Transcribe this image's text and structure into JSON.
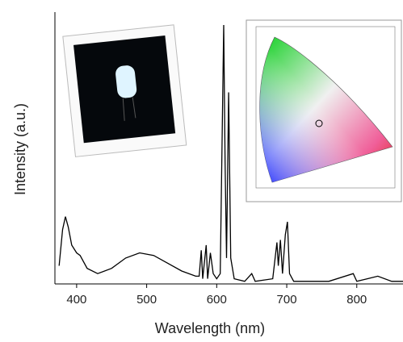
{
  "chart_data": {
    "type": "line",
    "x_label": "Wavelength (nm)",
    "y_label": "Intensity (a.u.)",
    "x": [
      375,
      380,
      384,
      388,
      393,
      400,
      405,
      415,
      430,
      450,
      470,
      490,
      510,
      530,
      550,
      570,
      575,
      578,
      580,
      585,
      587,
      591,
      595,
      600,
      605,
      610,
      612,
      614,
      617,
      620,
      625,
      640,
      650,
      655,
      680,
      686,
      688,
      691,
      694,
      698,
      701,
      704,
      710,
      745,
      760,
      795,
      800,
      815,
      830,
      850,
      866
    ],
    "series": [
      {
        "color": "#000000",
        "values": [
          0.07,
          0.21,
          0.26,
          0.22,
          0.15,
          0.12,
          0.11,
          0.06,
          0.04,
          0.06,
          0.1,
          0.12,
          0.11,
          0.08,
          0.05,
          0.03,
          0.03,
          0.13,
          0.02,
          0.15,
          0.02,
          0.12,
          0.04,
          0.02,
          0.04,
          1.0,
          0.47,
          0.1,
          0.74,
          0.1,
          0.02,
          0.01,
          0.04,
          0.01,
          0.02,
          0.16,
          0.07,
          0.17,
          0.04,
          0.19,
          0.24,
          0.04,
          0.01,
          0.01,
          0.01,
          0.04,
          0.01,
          0.02,
          0.03,
          0.01,
          0.01
        ]
      }
    ],
    "xlim": [
      369,
      866
    ],
    "ylim": [
      0,
      1.05
    ],
    "xticks": [
      400,
      500,
      600,
      700,
      800
    ]
  }
}
